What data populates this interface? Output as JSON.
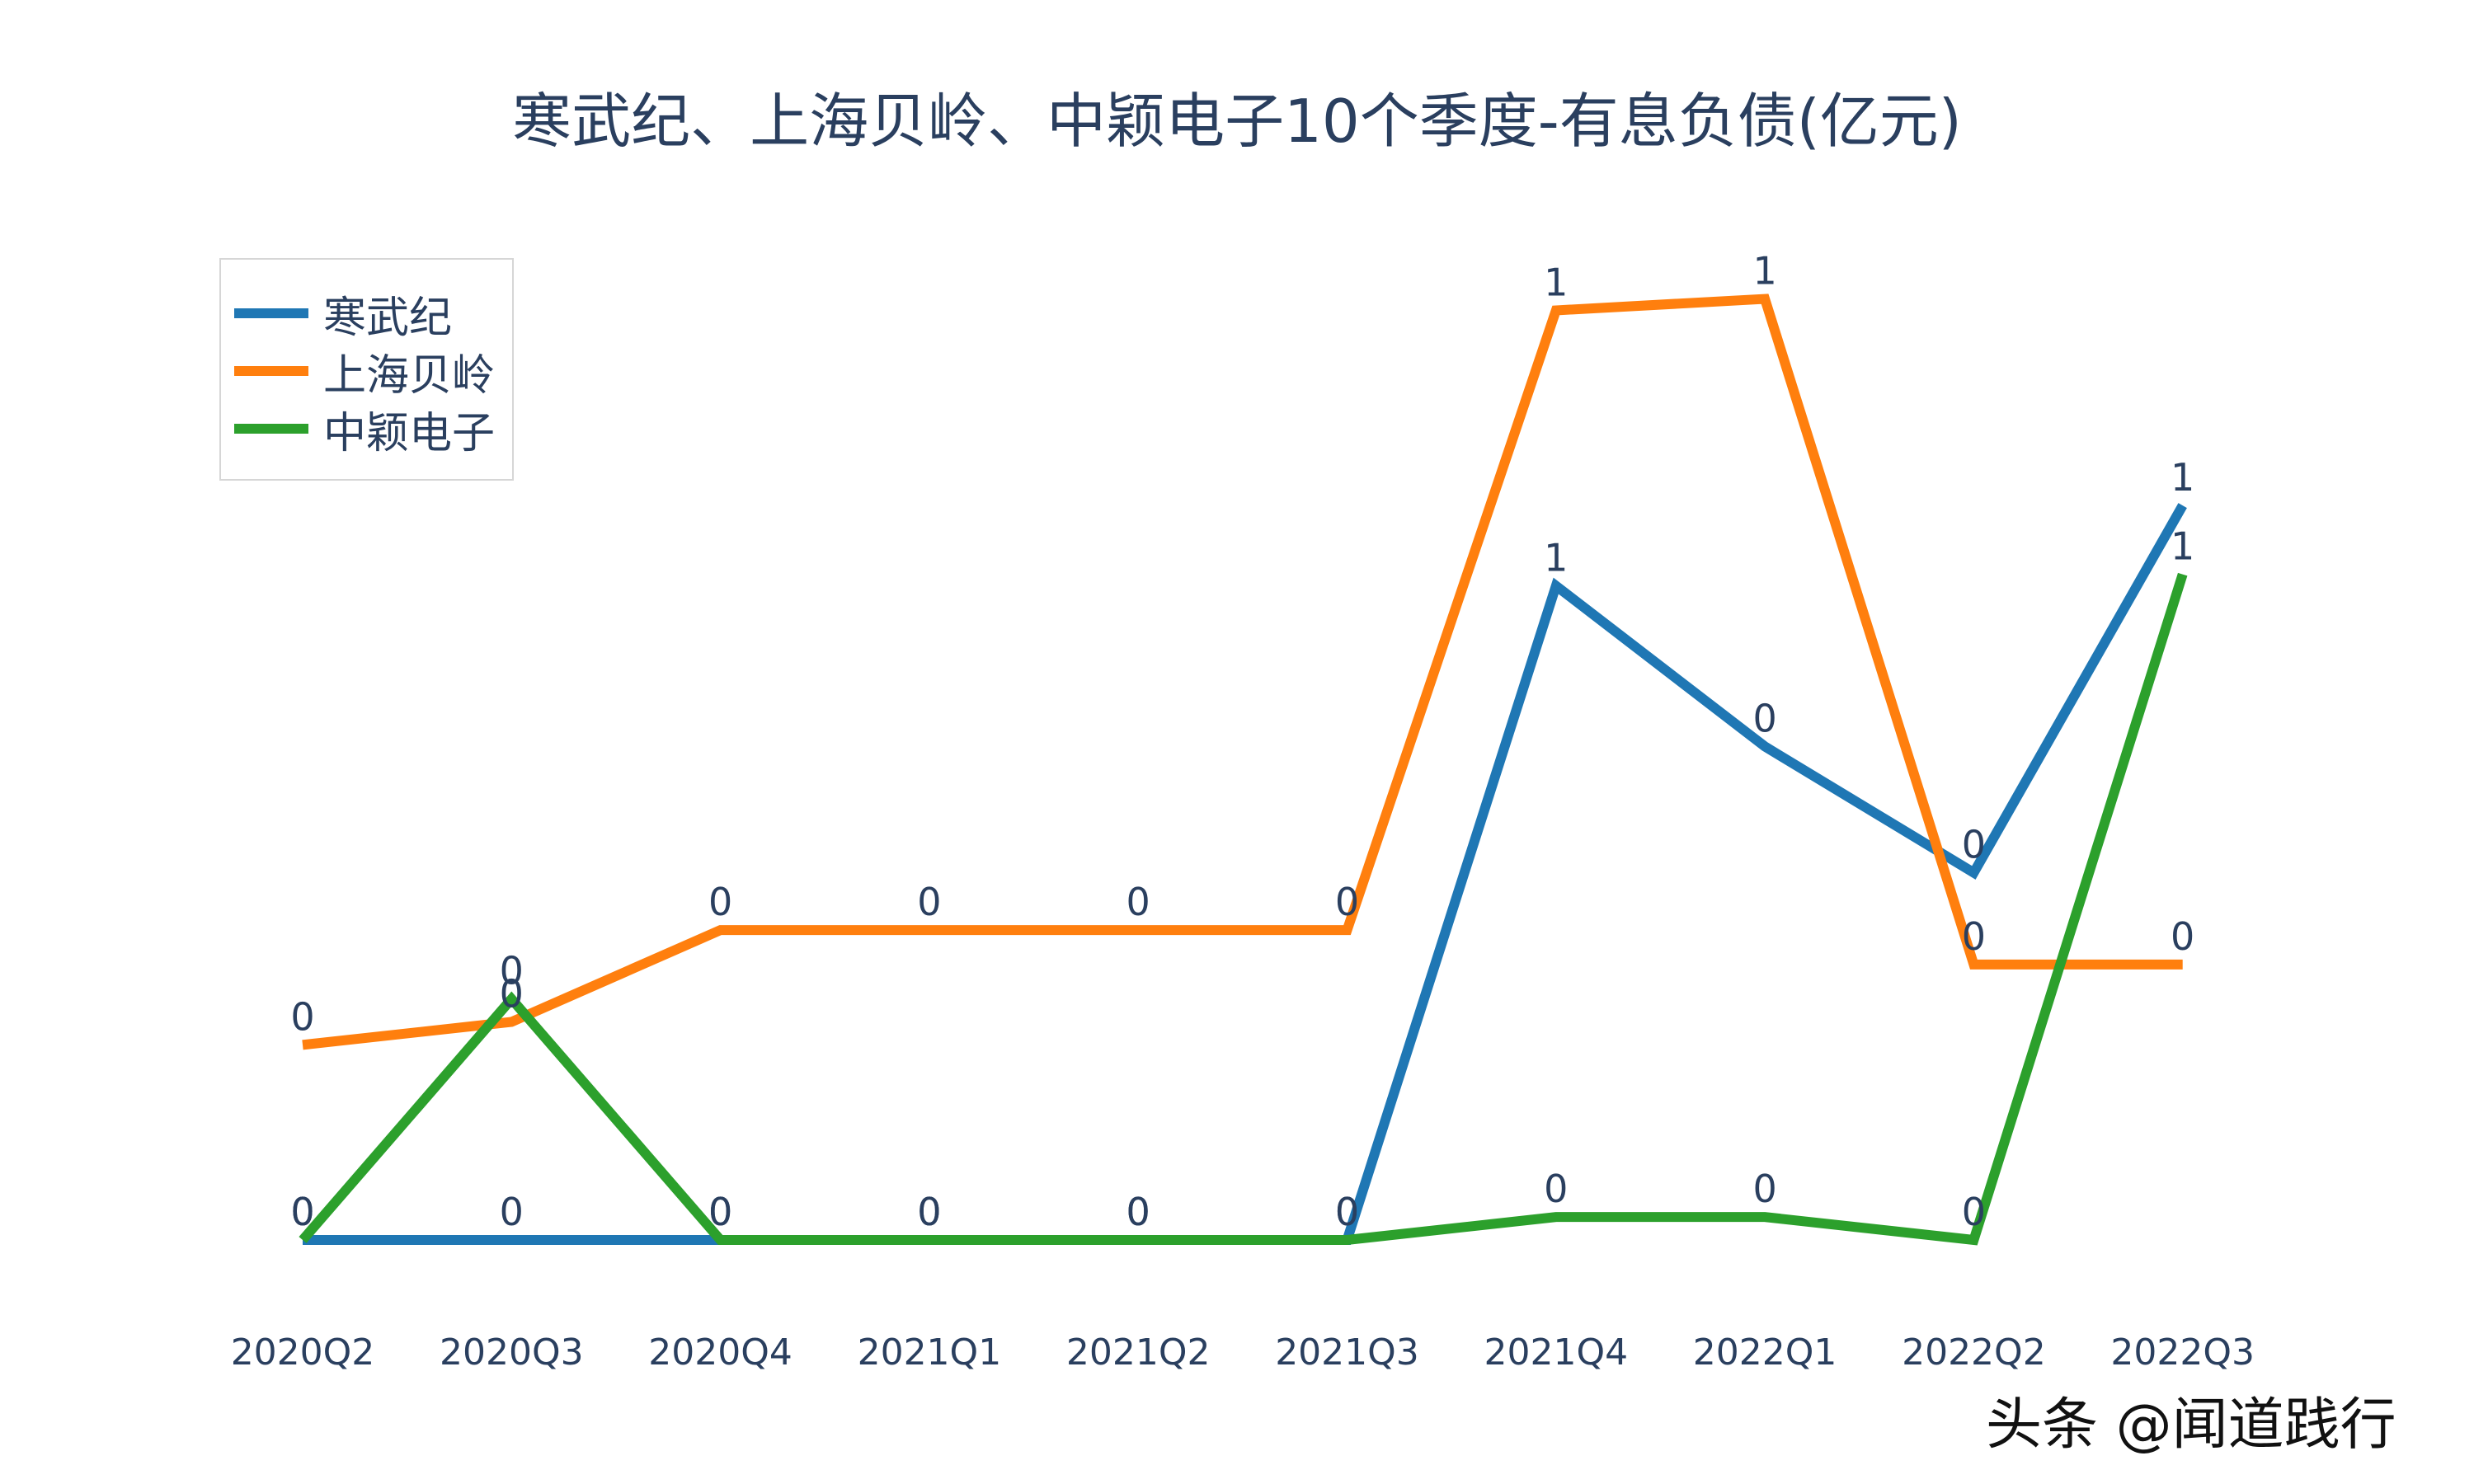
{
  "chart_data": {
    "type": "line",
    "title": "寒武纪、上海贝岭、中颖电子10个季度-有息负债(亿元)",
    "xlabel": "",
    "ylabel": "",
    "categories": [
      "2020Q2",
      "2020Q3",
      "2020Q4",
      "2021Q1",
      "2021Q2",
      "2021Q3",
      "2021Q4",
      "2022Q1",
      "2022Q2",
      "2022Q3"
    ],
    "series": [
      {
        "name": "寒武纪",
        "color": "#1f77b4",
        "values": [
          0,
          0,
          0,
          0,
          0,
          0,
          0.57,
          0.43,
          0.32,
          0.64
        ],
        "labels": [
          "0",
          "0",
          "0",
          "0",
          "0",
          "0",
          "1",
          "0",
          "0",
          "1"
        ]
      },
      {
        "name": "上海贝岭",
        "color": "#ff7f0e",
        "values": [
          0.17,
          0.19,
          0.27,
          0.27,
          0.27,
          0.27,
          0.81,
          0.82,
          0.24,
          0.24
        ],
        "labels": [
          "0",
          "0",
          "0",
          "0",
          "0",
          "0",
          "1",
          "1",
          "0",
          "0"
        ]
      },
      {
        "name": "中颖电子",
        "color": "#2ca02c",
        "values": [
          0,
          0.21,
          0,
          0,
          0,
          0,
          0.02,
          0.02,
          0,
          0.58
        ],
        "labels": [
          "0",
          "0",
          "0",
          "0",
          "0",
          "0",
          "0",
          "0",
          "0",
          "1"
        ]
      }
    ],
    "grid": false,
    "legend_position": "top-left",
    "y_axis_visible": false
  },
  "title": "寒武纪、上海贝岭、中颖电子10个季度-有息负债(亿元)",
  "legend": [
    {
      "label": "寒武纪",
      "color": "#1f77b4"
    },
    {
      "label": "上海贝岭",
      "color": "#ff7f0e"
    },
    {
      "label": "中颖电子",
      "color": "#2ca02c"
    }
  ],
  "x_ticks": [
    "2020Q2",
    "2020Q3",
    "2020Q4",
    "2021Q1",
    "2021Q2",
    "2021Q3",
    "2021Q4",
    "2022Q1",
    "2022Q2",
    "2022Q3"
  ],
  "watermark": "头条 @闻道践行"
}
